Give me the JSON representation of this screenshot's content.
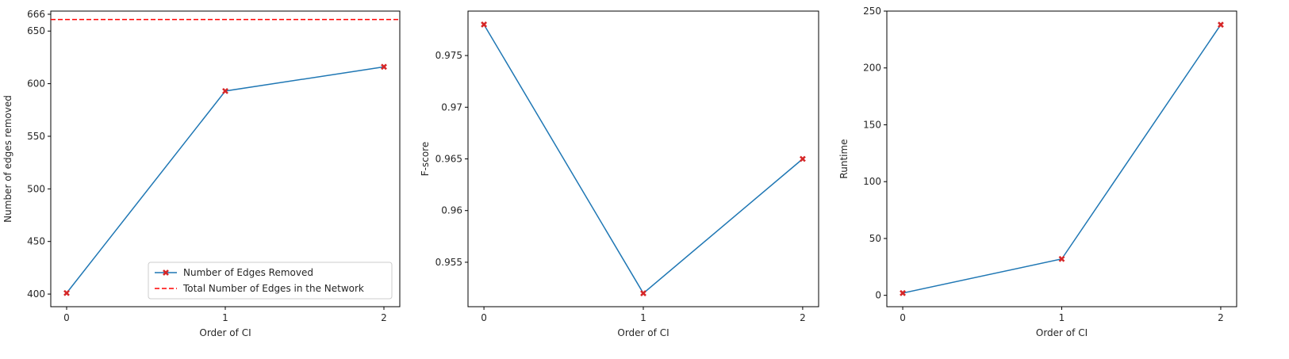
{
  "chart_data": [
    {
      "type": "line",
      "xlabel": "Order of CI",
      "ylabel": "Number of edges removed",
      "xlim": [
        -0.1,
        2.1
      ],
      "ylim": [
        388,
        669
      ],
      "x_ticks": [
        "0",
        "1",
        "2"
      ],
      "y_ticks": [
        400,
        450,
        500,
        550,
        600,
        650,
        666
      ],
      "grid": false,
      "legend_position": "lower-right",
      "series": [
        {
          "name": "Number of Edges Removed",
          "x": [
            0,
            1,
            2
          ],
          "y": [
            401,
            593,
            616
          ],
          "color": "#1f77b4",
          "marker": "X",
          "marker_color": "#d62728"
        }
      ],
      "reference_line": {
        "name": "Total Number of Edges in the Network",
        "y": 661,
        "color": "#ff0000",
        "style": "dashed"
      }
    },
    {
      "type": "line",
      "xlabel": "Order of CI",
      "ylabel": "F-score",
      "xlim": [
        -0.1,
        2.1
      ],
      "ylim": [
        0.9507,
        0.9793
      ],
      "x_ticks": [
        "0",
        "1",
        "2"
      ],
      "y_ticks": [
        0.955,
        0.96,
        0.965,
        0.97,
        0.975
      ],
      "grid": false,
      "series": [
        {
          "x": [
            0,
            1,
            2
          ],
          "y": [
            0.978,
            0.952,
            0.965
          ],
          "color": "#1f77b4",
          "marker": "X",
          "marker_color": "#d62728"
        }
      ]
    },
    {
      "type": "line",
      "xlabel": "Order of CI",
      "ylabel": "Runtime",
      "xlim": [
        -0.1,
        2.1
      ],
      "ylim": [
        -10,
        250
      ],
      "x_ticks": [
        "0",
        "1",
        "2"
      ],
      "y_ticks": [
        0,
        50,
        100,
        150,
        200,
        250
      ],
      "grid": false,
      "series": [
        {
          "x": [
            0,
            1,
            2
          ],
          "y": [
            2,
            32,
            238
          ],
          "color": "#1f77b4",
          "marker": "X",
          "marker_color": "#d62728"
        }
      ]
    }
  ]
}
